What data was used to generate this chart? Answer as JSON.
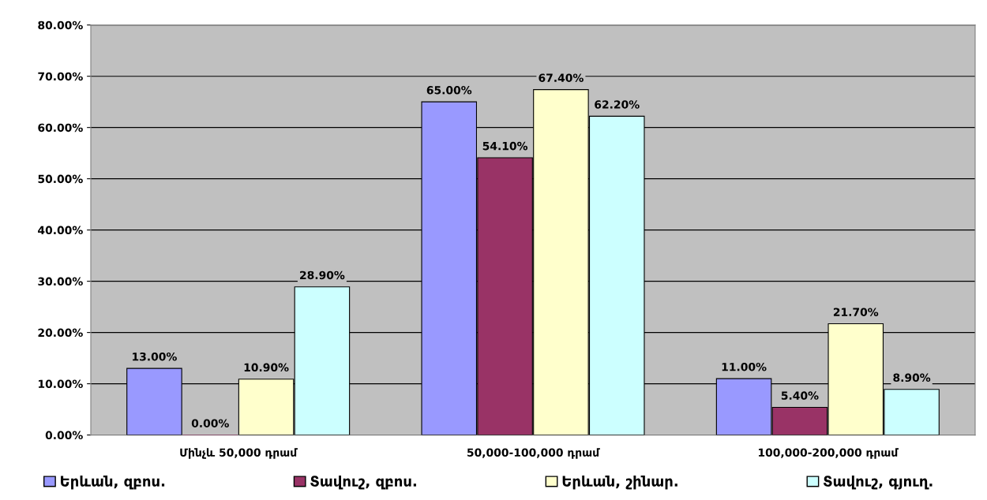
{
  "chart_data": {
    "type": "bar",
    "categories": [
      "Մինչև 50,000 դրամ",
      "50,000-100,000 դրամ",
      "100,000-200,000 դրամ"
    ],
    "series": [
      {
        "name": "Երևան, զբոս.",
        "color": "#9999ff",
        "values": [
          13.0,
          65.0,
          11.0
        ],
        "value_labels": [
          "13.00%",
          "65.00%",
          "11.00%"
        ]
      },
      {
        "name": "Տավուշ, զբոս.",
        "color": "#993366",
        "values": [
          0.0,
          54.1,
          5.4
        ],
        "value_labels": [
          "0.00%",
          "54.10%",
          "5.40%"
        ]
      },
      {
        "name": "Երևան, շինար.",
        "color": "#ffffcc",
        "values": [
          10.9,
          67.4,
          21.7
        ],
        "value_labels": [
          "10.90%",
          "67.40%",
          "21.70%"
        ]
      },
      {
        "name": "Տավուշ, գյուղ.",
        "color": "#ccffff",
        "values": [
          28.9,
          62.2,
          8.9
        ],
        "value_labels": [
          "28.90%",
          "62.20%",
          "8.90%"
        ]
      }
    ],
    "ylim": [
      0,
      80
    ],
    "yticks": [
      {
        "value": 0,
        "label": "0.00%"
      },
      {
        "value": 10,
        "label": "10.00%"
      },
      {
        "value": 20,
        "label": "20.00%"
      },
      {
        "value": 30,
        "label": "30.00%"
      },
      {
        "value": 40,
        "label": "40.00%"
      },
      {
        "value": 50,
        "label": "50.00%"
      },
      {
        "value": 60,
        "label": "60.00%"
      },
      {
        "value": 70,
        "label": "70.00%"
      },
      {
        "value": 80,
        "label": "80.00%"
      }
    ],
    "grid": "y",
    "legend": "bottom"
  }
}
